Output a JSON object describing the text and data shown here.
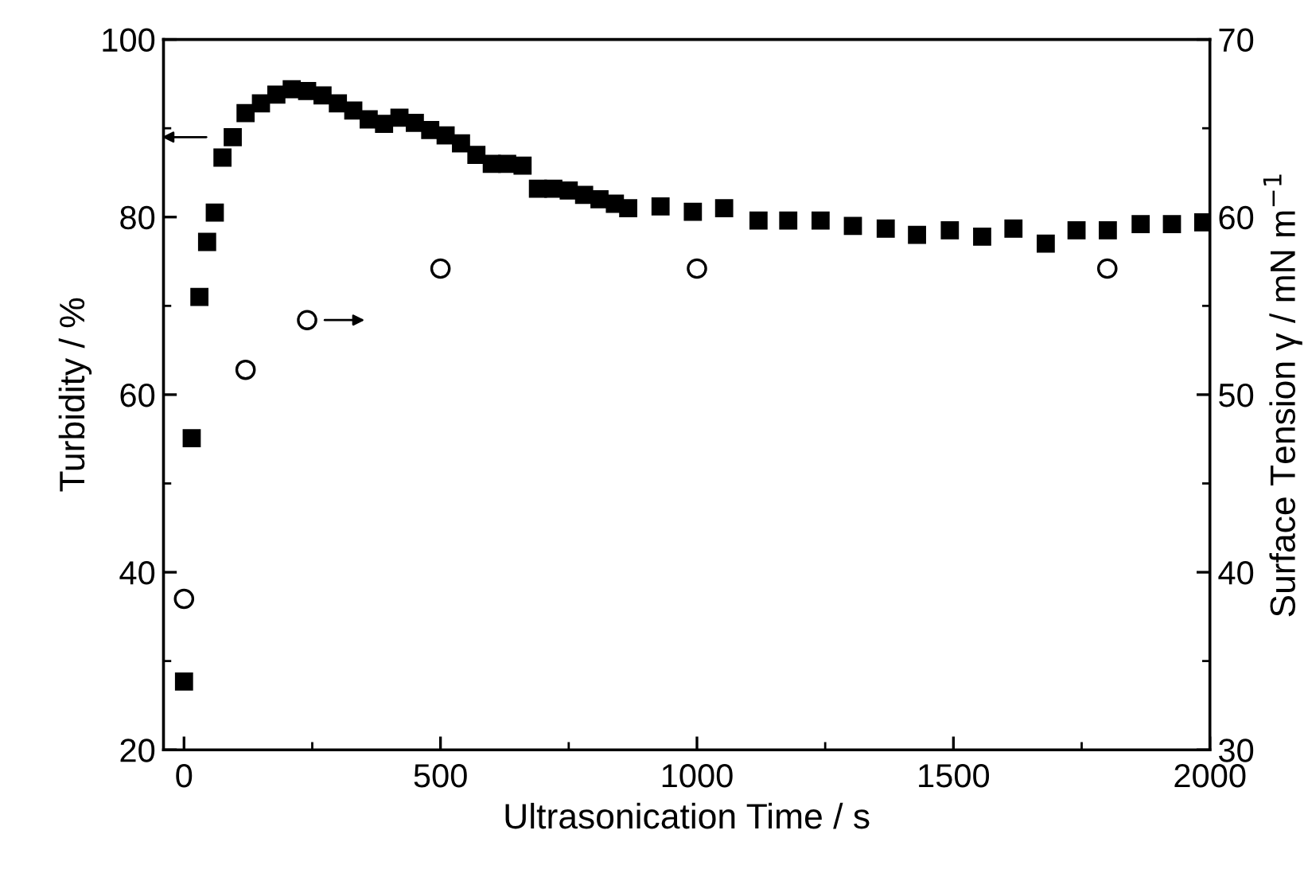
{
  "chart_data": {
    "type": "scatter",
    "xlabel": "Ultrasonication Time / s",
    "ylabel": "Turbidity / %",
    "y2label": "Surface Tension γ / mN m$^{−1}$",
    "xlim": [
      -40,
      2000
    ],
    "xticks": [
      0,
      500,
      1000,
      1500,
      2000
    ],
    "ylim": [
      20,
      100
    ],
    "yticks": [
      20,
      40,
      60,
      80,
      100
    ],
    "y2lim": [
      30,
      70
    ],
    "y2ticks": [
      30,
      40,
      50,
      60,
      70
    ],
    "grid": false,
    "legend": false,
    "series": [
      {
        "marker": "square",
        "color": "#000000",
        "x": [
          0,
          15,
          30,
          45,
          60,
          75,
          95,
          120,
          150,
          180,
          210,
          240,
          270,
          300,
          330,
          360,
          390,
          420,
          450,
          480,
          510,
          540,
          570,
          600,
          630,
          660,
          690,
          720,
          750,
          780,
          810,
          840,
          866,
          929,
          992,
          1053,
          1120,
          1178,
          1241,
          1304,
          1368,
          1429,
          1493,
          1556,
          1617,
          1680,
          1740,
          1801,
          1865,
          1926,
          1987
        ],
        "values": [
          27.7,
          55.1,
          71,
          77.2,
          80.5,
          86.7,
          89,
          91.7,
          92.8,
          93.8,
          94.4,
          94.2,
          93.7,
          92.8,
          92,
          91,
          90.5,
          91.2,
          90.6,
          89.8,
          89.2,
          88.3,
          87,
          86,
          86,
          85.8,
          83.2,
          83.2,
          83,
          82.5,
          82,
          81.5,
          81,
          81.2,
          80.6,
          81,
          79.6,
          79.6,
          79.6,
          79,
          78.7,
          78,
          78.5,
          77.8,
          78.7,
          77,
          78.5,
          78.5,
          79.2,
          79.2,
          79.4
        ]
      },
      {
        "marker": "circle",
        "color": "#000000",
        "axis": "y2",
        "x": [
          0,
          120,
          240,
          500,
          1000,
          1800
        ],
        "values": [
          38.5,
          51.4,
          54.2,
          57.1,
          57.1,
          57.1
        ]
      }
    ]
  }
}
